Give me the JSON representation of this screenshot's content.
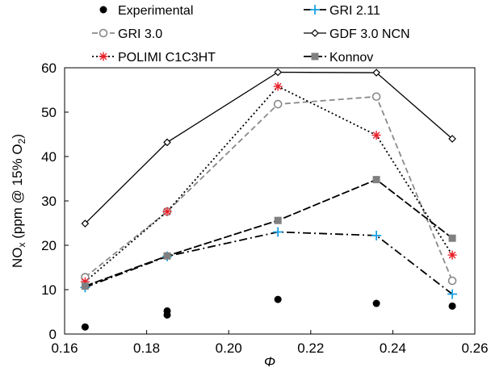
{
  "chart_data": {
    "type": "line",
    "xlabel": "Φ",
    "ylabel": {
      "main": "NO",
      "sub1": "x",
      "mid": " (ppm @ 15% O",
      "sub2": "2",
      "end": ")"
    },
    "xlim": [
      0.16,
      0.26
    ],
    "ylim": [
      0,
      60
    ],
    "xticks": [
      0.16,
      0.18,
      0.2,
      0.22,
      0.24,
      0.26
    ],
    "xtick_labels": [
      "0.16",
      "0.18",
      "0.20",
      "0.22",
      "0.24",
      "0.26"
    ],
    "yticks": [
      0,
      10,
      20,
      30,
      40,
      50,
      60
    ],
    "ytick_labels": [
      "0",
      "10",
      "20",
      "30",
      "40",
      "50",
      "60"
    ],
    "legend_position": "top",
    "series": [
      {
        "name": "Experimental",
        "color": "#000000",
        "line": "none",
        "marker": "filled-circle",
        "x": [
          0.165,
          0.185,
          0.185,
          0.212,
          0.236,
          0.2545
        ],
        "y": [
          1.6,
          5.2,
          4.3,
          7.8,
          6.9,
          6.3
        ]
      },
      {
        "name": "GRI 2.11",
        "color": "#1ba1e2",
        "line": "dashdot",
        "line_color": "#000000",
        "marker": "plus",
        "x": [
          0.165,
          0.185,
          0.212,
          0.236,
          0.2545
        ],
        "y": [
          10.5,
          17.5,
          23.0,
          22.2,
          9.0
        ]
      },
      {
        "name": "GRI 3.0",
        "color": "#888888",
        "line": "dashed",
        "line_color": "#8a8a8a",
        "marker": "open-circle",
        "x": [
          0.165,
          0.185,
          0.212,
          0.236,
          0.2545
        ],
        "y": [
          12.8,
          27.6,
          51.8,
          53.5,
          12.0
        ]
      },
      {
        "name": "GDF 3.0 NCN",
        "color": "#000000",
        "line": "solid",
        "line_color": "#000000",
        "marker": "open-diamond",
        "x": [
          0.165,
          0.185,
          0.212,
          0.236,
          0.2545
        ],
        "y": [
          24.9,
          43.2,
          59.0,
          58.9,
          44.0
        ]
      },
      {
        "name": "POLIMI C1C3HT",
        "color": "#e8202a",
        "line": "dotted",
        "line_color": "#000000",
        "marker": "asterisk",
        "x": [
          0.165,
          0.185,
          0.212,
          0.236,
          0.2545
        ],
        "y": [
          11.8,
          27.6,
          55.8,
          44.8,
          17.8
        ]
      },
      {
        "name": "Konnov",
        "color": "#808080",
        "line": "longdash",
        "line_color": "#000000",
        "marker": "filled-square",
        "x": [
          0.165,
          0.185,
          0.212,
          0.236,
          0.2545
        ],
        "y": [
          10.8,
          17.6,
          25.6,
          34.8,
          21.6
        ]
      }
    ]
  }
}
